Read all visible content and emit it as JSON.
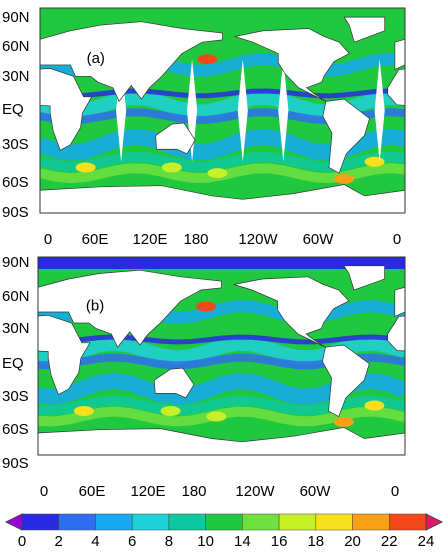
{
  "panels": [
    {
      "label": "(a)",
      "lat_labels": [
        "90N",
        "60N",
        "30N",
        "EQ",
        "30S",
        "60S",
        "90S"
      ],
      "lon_labels": [
        "0",
        "60E",
        "120E",
        "180",
        "120W",
        "60W",
        "0"
      ]
    },
    {
      "label": "(b)",
      "lat_labels": [
        "90N",
        "60N",
        "30N",
        "EQ",
        "30S",
        "60S",
        "90S"
      ],
      "lon_labels": [
        "0",
        "60E",
        "120E",
        "180",
        "120W",
        "60W",
        "0"
      ]
    }
  ],
  "colorbar": {
    "ticks": [
      0,
      2,
      4,
      6,
      8,
      10,
      14,
      16,
      18,
      20,
      22,
      24
    ],
    "colors": [
      "#9b00d8",
      "#2a2ae0",
      "#2f6ef0",
      "#18a8f0",
      "#20d0d8",
      "#10c8a0",
      "#20c840",
      "#70e040",
      "#c8f028",
      "#f8e020",
      "#f8a018",
      "#f04818",
      "#e01868"
    ]
  }
}
